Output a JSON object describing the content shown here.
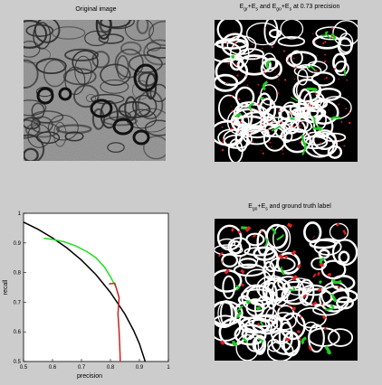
{
  "titles": {
    "original": "Original image",
    "top_right": {
      "parts": [
        {
          "t": "E",
          "sub": "gr"
        },
        {
          "t": "+E",
          "sub": "s"
        },
        {
          "t": " and E",
          "sub": "go"
        },
        {
          "t": "+E",
          "sub": "s"
        },
        {
          "t": " at 0.73 precision",
          "sub": ""
        }
      ]
    },
    "bottom_right": {
      "parts": [
        {
          "t": "E",
          "sub": "go"
        },
        {
          "t": "+E",
          "sub": "s"
        },
        {
          "t": " and ground truth label",
          "sub": ""
        }
      ]
    }
  },
  "colors": {
    "background": "#cccccc",
    "curve_black": "#000000",
    "curve_green": "#22dd22",
    "curve_red": "#cc2222",
    "mask_bg": "#000000",
    "mask_white": "#ffffff",
    "mask_green": "#22cc22",
    "mask_red": "#dd2222"
  },
  "chart_data": {
    "type": "line",
    "xlabel": "precision",
    "ylabel": "recall",
    "xlim": [
      0.5,
      1
    ],
    "ylim": [
      0.5,
      1
    ],
    "xticks": [
      "0.5",
      "0.6",
      "0.7",
      "0.8",
      "0.9",
      "1"
    ],
    "yticks": [
      "0.5",
      "0.6",
      "0.7",
      "0.8",
      "0.9",
      "1"
    ],
    "series": [
      {
        "color": "black",
        "x": [
          0.5,
          0.55,
          0.6,
          0.65,
          0.7,
          0.75,
          0.8,
          0.85,
          0.88,
          0.9,
          0.92
        ],
        "y": [
          0.97,
          0.946,
          0.917,
          0.883,
          0.842,
          0.793,
          0.733,
          0.66,
          0.605,
          0.56,
          0.5
        ]
      },
      {
        "color": "green",
        "x": [
          0.57,
          0.6,
          0.64,
          0.68,
          0.72,
          0.75,
          0.78,
          0.8,
          0.82
        ],
        "y": [
          0.916,
          0.912,
          0.904,
          0.89,
          0.87,
          0.85,
          0.818,
          0.786,
          0.75
        ]
      },
      {
        "color": "red",
        "x": [
          0.795,
          0.815,
          0.822,
          0.83,
          0.828,
          0.826,
          0.828,
          0.83,
          0.832,
          0.834
        ],
        "y": [
          0.762,
          0.764,
          0.742,
          0.715,
          0.69,
          0.66,
          0.63,
          0.6,
          0.56,
          0.5
        ]
      }
    ]
  }
}
